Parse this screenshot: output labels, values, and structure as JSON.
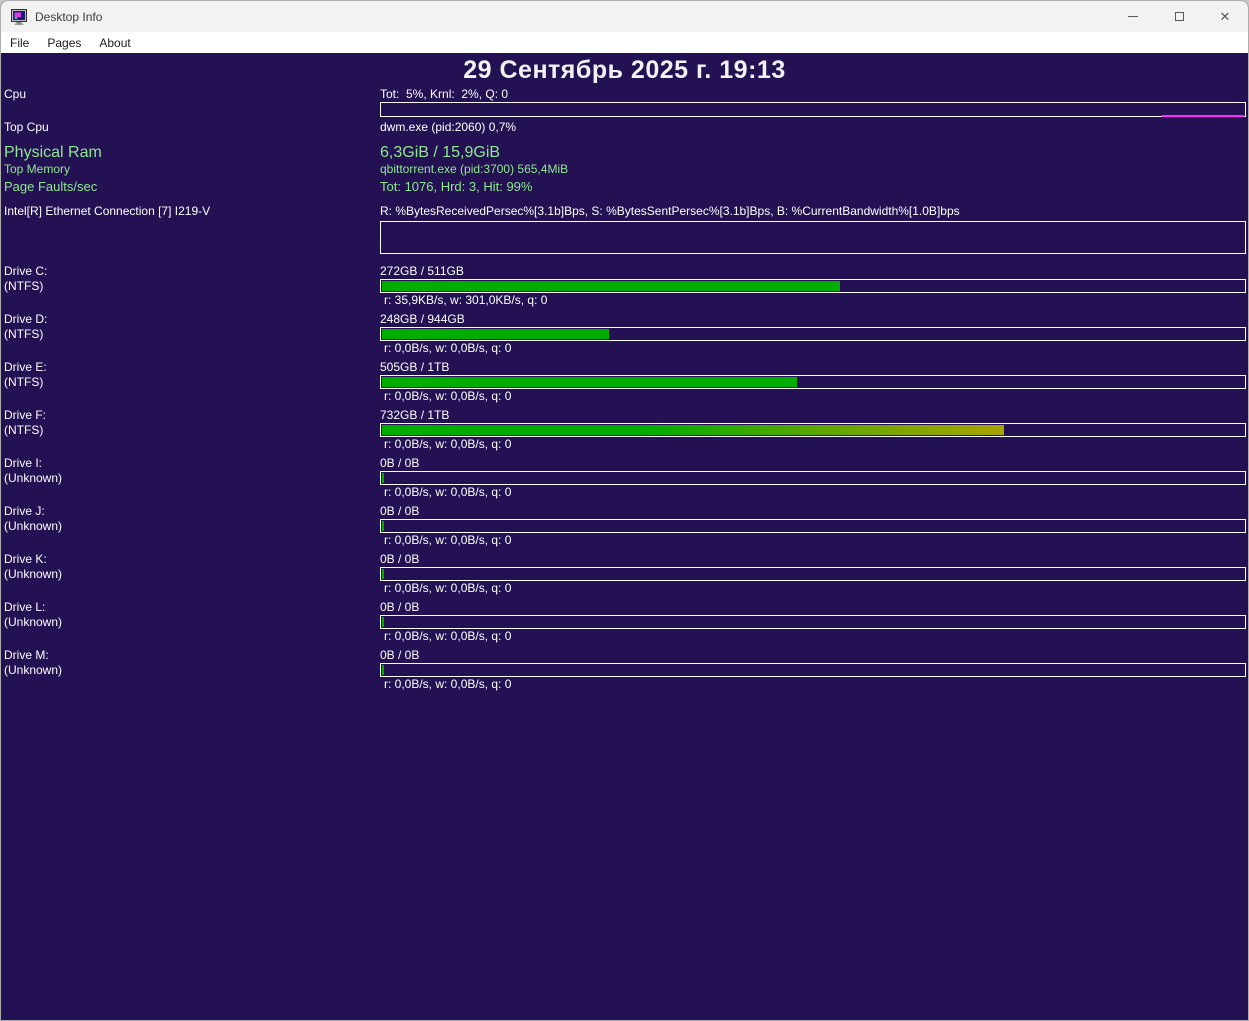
{
  "window": {
    "title": "Desktop Info",
    "menu": [
      {
        "label": "File"
      },
      {
        "label": "Pages"
      },
      {
        "label": "About"
      }
    ],
    "controls": {
      "minimize_icon": "minimize-icon",
      "maximize_icon": "maximize-icon",
      "close_icon": "close-icon"
    }
  },
  "header": {
    "datetime": "29 Сентябрь 2025 г. 19:13"
  },
  "sections": {
    "cpu": {
      "label": "Cpu",
      "value": "Tot:  5%, Krnl:  2%, Q: 0",
      "bar_fill_pct": 0
    },
    "top_cpu": {
      "label": "Top Cpu",
      "value": "dwm.exe (pid:2060) 0,7%"
    },
    "physical_ram": {
      "label": "Physical Ram",
      "value": "6,3GiB / 15,9GiB"
    },
    "top_memory": {
      "label": "Top Memory",
      "value": "qbittorrent.exe (pid:3700) 565,4MiB"
    },
    "page_faults": {
      "label": "Page Faults/sec",
      "value": "Tot: 1076, Hrd: 3, Hit: 99%"
    },
    "network": {
      "label": "Intel[R] Ethernet Connection [7] I219-V",
      "value": "R: %BytesReceivedPersec%[3.1b]Bps, S: %BytesSentPersec%[3.1b]Bps, B: %CurrentBandwidth%[1.0B]bps"
    }
  },
  "drives": [
    {
      "name": "Drive C:",
      "fs": "(NTFS)",
      "capacity": "272GB / 511GB",
      "io": "r: 35,9KB/s, w: 301,0KB/s, q: 0",
      "fill_pct": 53.1,
      "fill_class": "solid"
    },
    {
      "name": "Drive D:",
      "fs": "(NTFS)",
      "capacity": "248GB / 944GB",
      "io": "r: 0,0B/s, w: 0,0B/s, q: 0",
      "fill_pct": 26.3,
      "fill_class": "solid"
    },
    {
      "name": "Drive E:",
      "fs": "(NTFS)",
      "capacity": "505GB / 1TB",
      "io": "r: 0,0B/s, w: 0,0B/s, q: 0",
      "fill_pct": 48.2,
      "fill_class": "solid"
    },
    {
      "name": "Drive F:",
      "fs": "(NTFS)",
      "capacity": "732GB / 1TB",
      "io": "r: 0,0B/s, w: 0,0B/s, q: 0",
      "fill_pct": 72.1,
      "fill_class": "gradient"
    },
    {
      "name": "Drive I:",
      "fs": "(Unknown)",
      "capacity": "0B / 0B",
      "io": "r: 0,0B/s, w: 0,0B/s, q: 0",
      "fill_pct": 0,
      "fill_class": "solid"
    },
    {
      "name": "Drive J:",
      "fs": "(Unknown)",
      "capacity": "0B / 0B",
      "io": "r: 0,0B/s, w: 0,0B/s, q: 0",
      "fill_pct": 0,
      "fill_class": "solid"
    },
    {
      "name": "Drive K:",
      "fs": "(Unknown)",
      "capacity": "0B / 0B",
      "io": "r: 0,0B/s, w: 0,0B/s, q: 0",
      "fill_pct": 0,
      "fill_class": "solid"
    },
    {
      "name": "Drive L:",
      "fs": "(Unknown)",
      "capacity": "0B / 0B",
      "io": "r: 0,0B/s, w: 0,0B/s, q: 0",
      "fill_pct": 0,
      "fill_class": "solid"
    },
    {
      "name": "Drive M:",
      "fs": "(Unknown)",
      "capacity": "0B / 0B",
      "io": "r: 0,0B/s, w: 0,0B/s, q: 0",
      "fill_pct": 0,
      "fill_class": "solid"
    }
  ],
  "colors": {
    "content_background": "#241153",
    "text_white": "#ffffff",
    "text_green": "#8fe88f",
    "bar_green": "#00ad00",
    "bar_gradient_end": "#a8a400",
    "cpu_accent_magenta": "#ff2bff",
    "titlebar_background": "#f2f2f2"
  }
}
